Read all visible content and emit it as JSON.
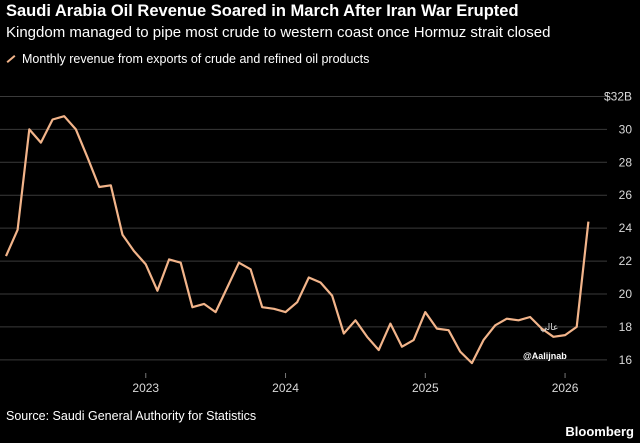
{
  "header": {
    "title": "Saudi Arabia Oil Revenue Soared in March After Iran War Erupted",
    "subtitle": "Kingdom managed to pipe most crude to western coast once Hormuz strait closed"
  },
  "footer": {
    "source": "Source: Saudi General Authority for Statistics",
    "brand": "Bloomberg"
  },
  "watermark": {
    "handle": "@Aalijnab",
    "arabic": "عالي"
  },
  "colors": {
    "background": "#000000",
    "series": "#f2b48a",
    "grid": "#3a3a3a"
  },
  "chart_data": {
    "type": "line",
    "title": "Saudi Arabia Oil Revenue Soared in March After Iran War Erupted",
    "subtitle": "Kingdom managed to pipe most crude to western coast once Hormuz strait closed",
    "xlabel": "",
    "ylabel": "",
    "y_unit_label": "$32B",
    "ylim": [
      15.2,
      33
    ],
    "yticks": [
      16,
      18,
      20,
      22,
      24,
      26,
      28,
      30,
      32
    ],
    "ytick_labels": [
      "16",
      "18",
      "20",
      "22",
      "24",
      "26",
      "28",
      "30",
      "$32B"
    ],
    "xticks": [
      "2023-01",
      "2024-01",
      "2025-01",
      "2026-01"
    ],
    "xtick_labels": [
      "2023",
      "2024",
      "2025",
      "2026"
    ],
    "x_range": [
      "2022-01",
      "2026-04"
    ],
    "grid": "horizontal",
    "legend_position": "top-left",
    "series": [
      {
        "name": "Monthly revenue from exports of crude and refined oil products",
        "x": [
          "2022-01",
          "2022-02",
          "2022-03",
          "2022-04",
          "2022-05",
          "2022-06",
          "2022-07",
          "2022-08",
          "2022-09",
          "2022-10",
          "2022-11",
          "2022-12",
          "2023-01",
          "2023-02",
          "2023-03",
          "2023-04",
          "2023-05",
          "2023-06",
          "2023-07",
          "2023-08",
          "2023-09",
          "2023-10",
          "2023-11",
          "2023-12",
          "2024-01",
          "2024-02",
          "2024-03",
          "2024-04",
          "2024-05",
          "2024-06",
          "2024-07",
          "2024-08",
          "2024-09",
          "2024-10",
          "2024-11",
          "2024-12",
          "2025-01",
          "2025-02",
          "2025-03",
          "2025-04",
          "2025-05",
          "2025-06",
          "2025-07",
          "2025-08",
          "2025-09",
          "2025-10",
          "2025-11",
          "2025-12",
          "2026-01",
          "2026-02",
          "2026-03"
        ],
        "values": [
          22.3,
          23.9,
          30.0,
          29.2,
          30.6,
          30.8,
          30.0,
          28.3,
          26.5,
          26.6,
          23.6,
          22.6,
          21.8,
          20.2,
          22.1,
          21.9,
          19.2,
          19.4,
          18.9,
          20.4,
          21.9,
          21.5,
          19.2,
          19.1,
          18.9,
          19.5,
          21.0,
          20.7,
          19.9,
          17.6,
          18.4,
          17.4,
          16.6,
          18.2,
          16.8,
          17.2,
          18.9,
          17.9,
          17.8,
          16.5,
          15.8,
          17.2,
          18.1,
          18.5,
          18.4,
          18.6,
          17.9,
          17.4,
          17.5,
          18.0,
          24.4
        ]
      }
    ]
  }
}
